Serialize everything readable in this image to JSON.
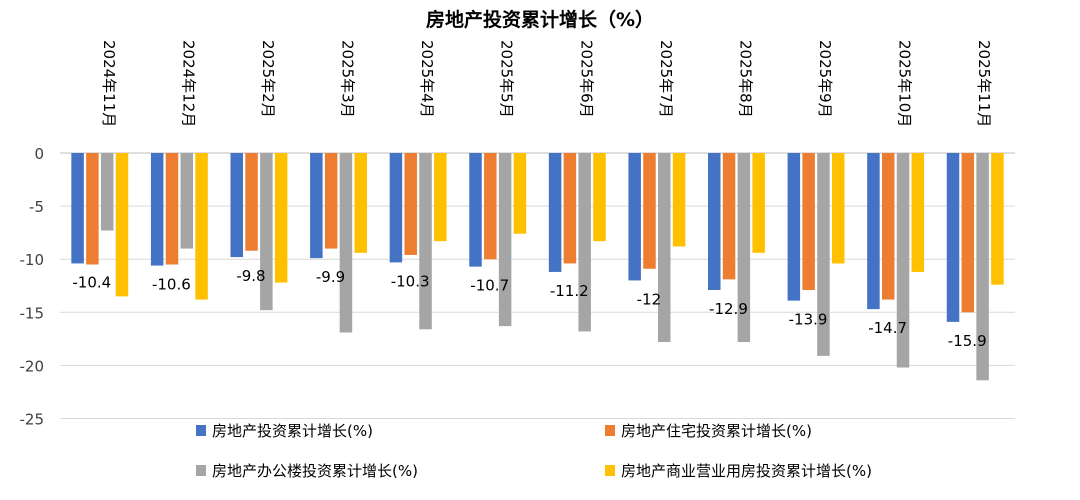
{
  "chart_data": {
    "type": "bar",
    "title": "房地产投资累计增长（%）",
    "categories": [
      "2024年11月",
      "2024年12月",
      "2025年2月",
      "2025年3月",
      "2025年4月",
      "2025年5月",
      "2025年6月",
      "2025年7月",
      "2025年8月",
      "2025年9月",
      "2025年10月",
      "2025年11月"
    ],
    "series": [
      {
        "name": "房地产投资累计增长(%)",
        "color": "#4472C4",
        "values": [
          -10.4,
          -10.6,
          -9.8,
          -9.9,
          -10.3,
          -10.7,
          -11.2,
          -12,
          -12.9,
          -13.9,
          -14.7,
          -15.9
        ]
      },
      {
        "name": "房地产住宅投资累计增长(%)",
        "color": "#ED7D31",
        "values": [
          -10.5,
          -10.5,
          -9.2,
          -9.0,
          -9.6,
          -10.0,
          -10.4,
          -10.9,
          -11.9,
          -12.9,
          -13.8,
          -15.0
        ]
      },
      {
        "name": "房地产办公楼投资累计增长(%)",
        "color": "#A5A5A5",
        "values": [
          -7.3,
          -9.0,
          -14.8,
          -16.9,
          -16.6,
          -16.3,
          -16.8,
          -17.8,
          -17.8,
          -19.1,
          -20.2,
          -21.4
        ]
      },
      {
        "name": "房地产商业营业用房投资累计增长(%)",
        "color": "#FFC000",
        "values": [
          -13.5,
          -13.8,
          -12.2,
          -9.4,
          -8.3,
          -7.6,
          -8.3,
          -8.8,
          -9.4,
          -10.4,
          -11.2,
          -12.4
        ]
      }
    ],
    "data_labels": [
      "-10.4",
      "-10.6",
      "-9.8",
      "-9.9",
      "-10.3",
      "-10.7",
      "-11.2",
      "-12",
      "-12.9",
      "-13.9",
      "-14.7",
      "-15.9"
    ],
    "yticks": [
      "0",
      "-5",
      "-10",
      "-15",
      "-20",
      "-25"
    ],
    "ylim": [
      -25,
      0
    ],
    "xlabel": "",
    "ylabel": "",
    "grid": true,
    "legend_position": "bottom"
  }
}
